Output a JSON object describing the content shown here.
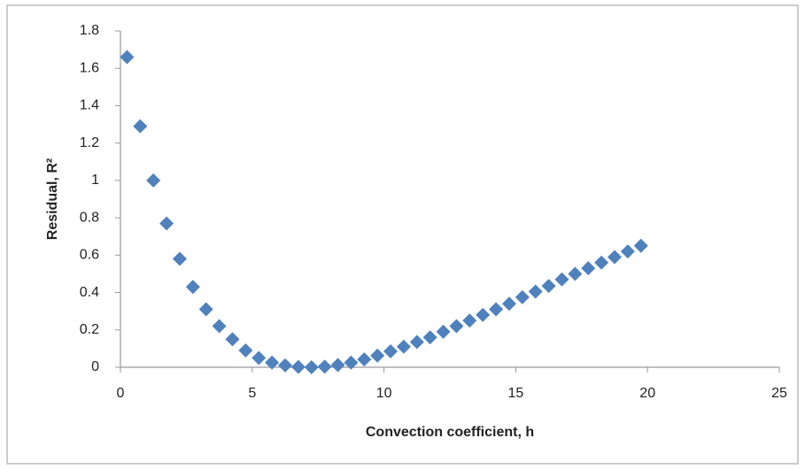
{
  "chart_data": {
    "type": "scatter",
    "xlabel": "Convection coefficient, h",
    "ylabel": "Residual, R²",
    "color": "#4f81bd",
    "x": [
      0.25,
      0.75,
      1.25,
      1.75,
      2.25,
      2.75,
      3.25,
      3.75,
      4.25,
      4.75,
      5.25,
      5.75,
      6.25,
      6.75,
      7.25,
      7.75,
      8.25,
      8.75,
      9.25,
      9.75,
      10.25,
      10.75,
      11.25,
      11.75,
      12.25,
      12.75,
      13.25,
      13.75,
      14.25,
      14.75,
      15.25,
      15.75,
      16.25,
      16.75,
      17.25,
      17.75,
      18.25,
      18.75,
      19.25,
      19.75
    ],
    "values": [
      1.66,
      1.29,
      1.0,
      0.77,
      0.58,
      0.43,
      0.31,
      0.22,
      0.15,
      0.09,
      0.05,
      0.025,
      0.01,
      0.002,
      0.0,
      0.003,
      0.012,
      0.025,
      0.042,
      0.062,
      0.085,
      0.11,
      0.135,
      0.16,
      0.19,
      0.22,
      0.25,
      0.28,
      0.31,
      0.34,
      0.375,
      0.405,
      0.435,
      0.47,
      0.5,
      0.53,
      0.56,
      0.59,
      0.62,
      0.65
    ],
    "xlim": [
      0,
      25
    ],
    "xticks": [
      0,
      5,
      10,
      15,
      20,
      25
    ],
    "ylim": [
      0,
      1.8
    ],
    "yticks": [
      0,
      0.2,
      0.4,
      0.6,
      0.8,
      1,
      1.2,
      1.4,
      1.6,
      1.8
    ],
    "grid": false
  }
}
